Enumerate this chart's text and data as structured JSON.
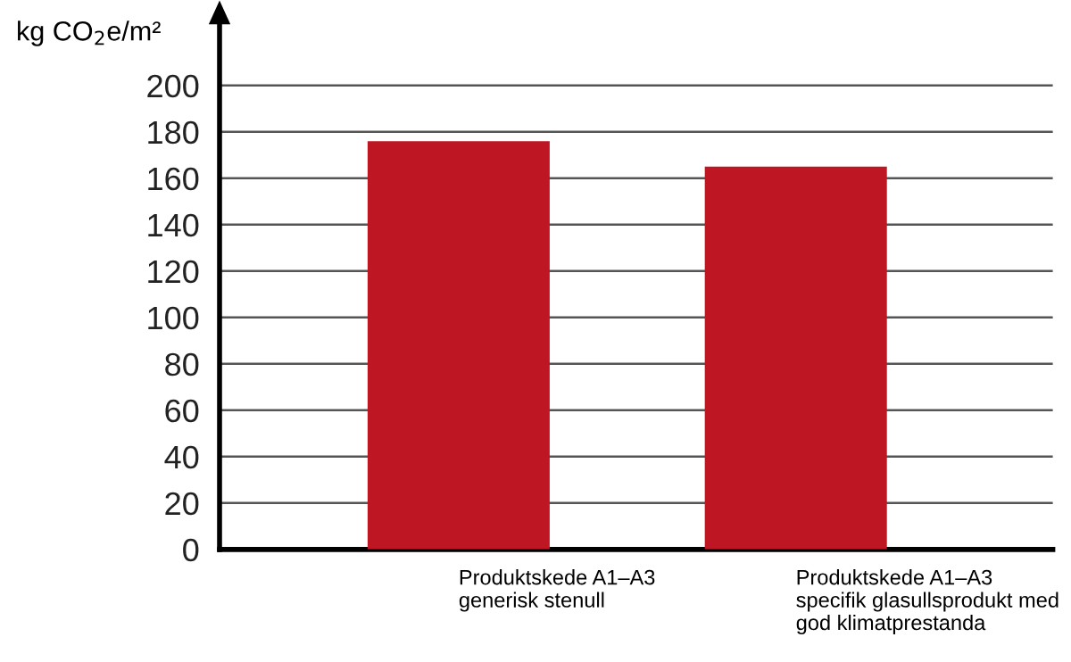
{
  "chart_data": {
    "type": "bar",
    "ylabel": "kg CO$_{2}$e/m²",
    "categories": [
      "Produktskede A1–A3\ngenerisk stenull",
      "Produktskede A1–A3\nspecifik glasullsprodukt med\ngod klimatprestanda"
    ],
    "values": [
      176,
      165
    ],
    "color": "#be1622",
    "ylim": [
      0,
      230
    ],
    "yticks": [
      0,
      20,
      40,
      60,
      80,
      100,
      120,
      140,
      160,
      180,
      200
    ],
    "grid": "y"
  }
}
